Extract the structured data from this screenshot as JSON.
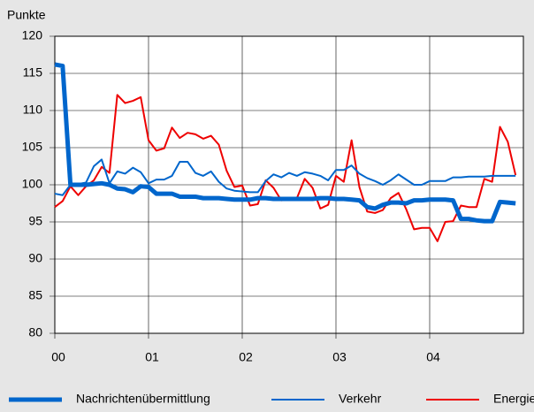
{
  "chart_data": {
    "type": "line",
    "y_label": "Punkte",
    "x": [
      0,
      0.0833,
      0.1667,
      0.25,
      0.3333,
      0.4167,
      0.5,
      0.5833,
      0.6667,
      0.75,
      0.8333,
      0.9167,
      1,
      1.0833,
      1.1667,
      1.25,
      1.3333,
      1.4167,
      1.5,
      1.5833,
      1.6667,
      1.75,
      1.8333,
      1.9167,
      2,
      2.0833,
      2.1667,
      2.25,
      2.3333,
      2.4167,
      2.5,
      2.5833,
      2.6667,
      2.75,
      2.8333,
      2.9167,
      3,
      3.0833,
      3.1667,
      3.25,
      3.3333,
      3.4167,
      3.5,
      3.5833,
      3.6667,
      3.75,
      3.8333,
      3.9167,
      4,
      4.0833,
      4.1667,
      4.25,
      4.3333,
      4.4167,
      4.5,
      4.5833,
      4.6667,
      4.75,
      4.8333,
      4.9167
    ],
    "xlim": [
      0,
      5
    ],
    "xticks": [
      {
        "value": 0,
        "label": "00"
      },
      {
        "value": 1,
        "label": "01"
      },
      {
        "value": 2,
        "label": "02"
      },
      {
        "value": 3,
        "label": "03"
      },
      {
        "value": 4,
        "label": "04"
      }
    ],
    "ylim": [
      80,
      120
    ],
    "yticks": [
      80,
      85,
      90,
      95,
      100,
      105,
      110,
      115,
      120
    ],
    "grid": true,
    "legend": "bottom",
    "series": [
      {
        "name": "Nachrichtenübermittlung",
        "color": "#0066cc",
        "width": 5,
        "values": [
          116.2,
          116,
          100,
          100,
          100,
          100.1,
          100.2,
          100,
          99.5,
          99.4,
          99.0,
          99.8,
          99.7,
          98.8,
          98.8,
          98.8,
          98.4,
          98.4,
          98.4,
          98.2,
          98.2,
          98.2,
          98.1,
          98.0,
          98.0,
          98.0,
          98.2,
          98.2,
          98.1,
          98.1,
          98.1,
          98.1,
          98.1,
          98.1,
          98.2,
          98.2,
          98.1,
          98.1,
          98.0,
          97.9,
          97.0,
          96.8,
          97.3,
          97.6,
          97.6,
          97.5,
          97.9,
          97.9,
          98.0,
          98.0,
          98.0,
          97.9,
          95.4,
          95.4,
          95.2,
          95.1,
          95.1,
          97.7,
          97.6,
          97.5
        ]
      },
      {
        "name": "Verkehr",
        "color": "#0066cc",
        "width": 2,
        "values": [
          98.8,
          98.6,
          100,
          100.1,
          100.3,
          102.5,
          103.4,
          100.2,
          101.8,
          101.5,
          102.3,
          101.7,
          100.2,
          100.7,
          100.7,
          101.2,
          103.1,
          103.1,
          101.6,
          101.2,
          101.8,
          100.4,
          99.5,
          99.2,
          99.1,
          99.0,
          99.0,
          100.5,
          101.4,
          101.0,
          101.6,
          101.2,
          101.7,
          101.5,
          101.2,
          100.6,
          102.0,
          102.0,
          102.6,
          101.5,
          100.9,
          100.5,
          100.0,
          100.6,
          101.4,
          100.7,
          100.0,
          100.0,
          100.5,
          100.5,
          100.5,
          101.0,
          101.0,
          101.1,
          101.1,
          101.1,
          101.2,
          101.2,
          101.2,
          101.2
        ]
      },
      {
        "name": "Energie",
        "color": "#ee0000",
        "width": 2,
        "values": [
          97.0,
          97.8,
          99.8,
          98.6,
          99.8,
          100.6,
          102.4,
          101.6,
          112.1,
          111.0,
          111.3,
          111.8,
          106.0,
          104.6,
          104.9,
          107.7,
          106.3,
          107.0,
          106.8,
          106.2,
          106.6,
          105.4,
          101.9,
          99.7,
          99.9,
          97.2,
          97.4,
          100.6,
          99.6,
          97.9,
          98.0,
          98.2,
          100.8,
          99.6,
          96.8,
          97.3,
          101.2,
          100.4,
          106.0,
          99.7,
          96.4,
          96.2,
          96.6,
          98.2,
          98.9,
          96.7,
          94.0,
          94.2,
          94.2,
          92.4,
          95.0,
          95.1,
          97.2,
          97.0,
          97.0,
          100.8,
          100.4,
          107.8,
          105.8,
          101.3
        ]
      }
    ]
  }
}
